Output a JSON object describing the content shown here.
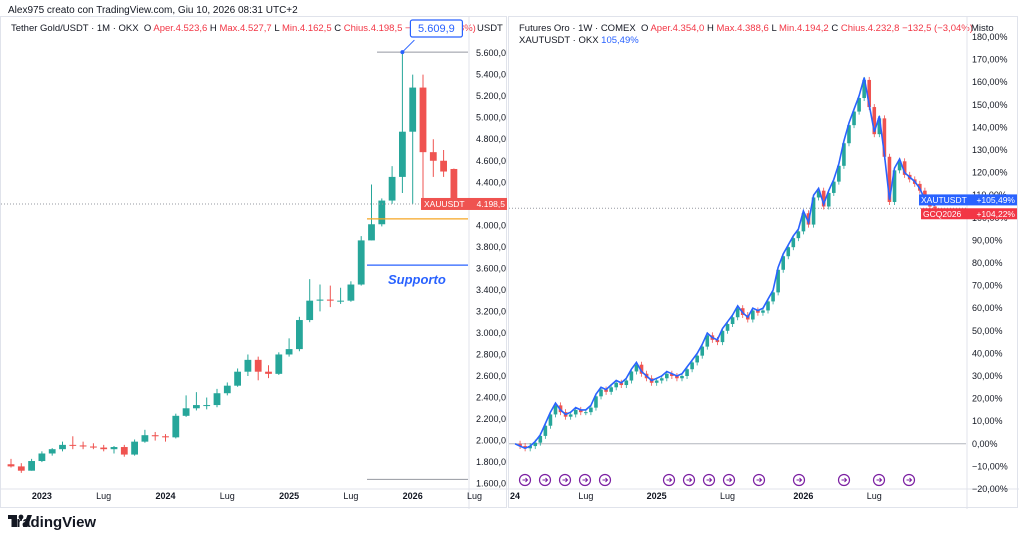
{
  "header": {
    "note": "Alex975 creato con TradingView.com, Giu 10, 2026 08:31 UTC+2"
  },
  "left": {
    "symbol": "Tether Gold/USDT · 1M · OKX",
    "open_label": "O",
    "open": "Aper.4.523,6",
    "high_label": "H",
    "high": "Max.4.527,7",
    "low_label": "L",
    "low": "Min.4.162,5",
    "close_label": "C",
    "close": "Chius.4.198,5",
    "change": "−325,1 (−7,18%)",
    "axis_title": "USDT",
    "price_tag_label": "XAUUSDT",
    "price_tag_value": "4.198,5",
    "peak_callout": "5.609,9",
    "support_label": "Supporto",
    "colors": {
      "up": "#26a69a",
      "down": "#ef5350",
      "support": "#2962ff",
      "level_orange": "#f5a623"
    }
  },
  "right": {
    "symbol": "Futures Oro · 1W · COMEX",
    "open_label": "O",
    "open": "Aper.4.354,0",
    "high_label": "H",
    "high": "Max.4.388,6",
    "low_label": "L",
    "low": "Min.4.194,2",
    "close_label": "C",
    "close": "Chius.4.232,8",
    "change": "−132,5 (−3,04%)",
    "compare_symbol": "XAUTUSDT · OKX",
    "compare_value": "105,49%",
    "axis_title": "Misto",
    "tag1_label": "XAUTUSDT",
    "tag1_value": "+105,49%",
    "tag2_label": "GCQ2026",
    "tag2_value": "+104,22%",
    "colors": {
      "line": "#2962ff",
      "up": "#26a69a",
      "down": "#ef5350",
      "event_icon": "#7b1fa2"
    }
  },
  "logo": "TradingView",
  "chart_data": [
    {
      "type": "candlestick",
      "title": "Tether Gold/USDT · 1M · OKX",
      "ylabel": "USDT",
      "ylim": [
        1550,
        5750
      ],
      "y_ticks": [
        "1.600,0",
        "1.800,0",
        "2.000,0",
        "2.200,0",
        "2.400,0",
        "2.600,0",
        "2.800,0",
        "3.000,0",
        "3.200,0",
        "3.400,0",
        "3.600,0",
        "3.800,0",
        "4.000,0",
        "4.200,0",
        "4.400,0",
        "4.600,0",
        "4.800,0",
        "5.000,0",
        "5.200,0",
        "5.400,0",
        "5.600,0"
      ],
      "x_tick_labels": [
        "2023",
        "Lug",
        "2024",
        "Lug",
        "2025",
        "Lug",
        "2026",
        "Lug"
      ],
      "candles": [
        {
          "o": 1780,
          "h": 1830,
          "l": 1750,
          "c": 1760
        },
        {
          "o": 1760,
          "h": 1790,
          "l": 1700,
          "c": 1720
        },
        {
          "o": 1720,
          "h": 1830,
          "l": 1720,
          "c": 1810
        },
        {
          "o": 1810,
          "h": 1900,
          "l": 1800,
          "c": 1880
        },
        {
          "o": 1880,
          "h": 1930,
          "l": 1860,
          "c": 1920
        },
        {
          "o": 1920,
          "h": 1990,
          "l": 1900,
          "c": 1960
        },
        {
          "o": 1960,
          "h": 2040,
          "l": 1920,
          "c": 1955
        },
        {
          "o": 1955,
          "h": 1990,
          "l": 1920,
          "c": 1945
        },
        {
          "o": 1945,
          "h": 1975,
          "l": 1920,
          "c": 1935
        },
        {
          "o": 1935,
          "h": 1960,
          "l": 1900,
          "c": 1920
        },
        {
          "o": 1920,
          "h": 1950,
          "l": 1880,
          "c": 1940
        },
        {
          "o": 1940,
          "h": 1960,
          "l": 1850,
          "c": 1870
        },
        {
          "o": 1870,
          "h": 2010,
          "l": 1860,
          "c": 1990
        },
        {
          "o": 1990,
          "h": 2100,
          "l": 1980,
          "c": 2050
        },
        {
          "o": 2050,
          "h": 2080,
          "l": 2000,
          "c": 2040
        },
        {
          "o": 2040,
          "h": 2060,
          "l": 1990,
          "c": 2030
        },
        {
          "o": 2030,
          "h": 2250,
          "l": 2020,
          "c": 2230
        },
        {
          "o": 2230,
          "h": 2420,
          "l": 2220,
          "c": 2300
        },
        {
          "o": 2300,
          "h": 2450,
          "l": 2280,
          "c": 2330
        },
        {
          "o": 2330,
          "h": 2400,
          "l": 2290,
          "c": 2330
        },
        {
          "o": 2330,
          "h": 2480,
          "l": 2310,
          "c": 2440
        },
        {
          "o": 2440,
          "h": 2540,
          "l": 2420,
          "c": 2510
        },
        {
          "o": 2510,
          "h": 2670,
          "l": 2500,
          "c": 2640
        },
        {
          "o": 2640,
          "h": 2800,
          "l": 2600,
          "c": 2750
        },
        {
          "o": 2750,
          "h": 2780,
          "l": 2560,
          "c": 2640
        },
        {
          "o": 2640,
          "h": 2700,
          "l": 2580,
          "c": 2620
        },
        {
          "o": 2620,
          "h": 2820,
          "l": 2610,
          "c": 2800
        },
        {
          "o": 2800,
          "h": 2950,
          "l": 2780,
          "c": 2850
        },
        {
          "o": 2850,
          "h": 3150,
          "l": 2830,
          "c": 3120
        },
        {
          "o": 3120,
          "h": 3500,
          "l": 3100,
          "c": 3300
        },
        {
          "o": 3300,
          "h": 3450,
          "l": 3200,
          "c": 3310
        },
        {
          "o": 3310,
          "h": 3440,
          "l": 3240,
          "c": 3300
        },
        {
          "o": 3300,
          "h": 3420,
          "l": 3270,
          "c": 3300
        },
        {
          "o": 3300,
          "h": 3480,
          "l": 3290,
          "c": 3450
        },
        {
          "o": 3450,
          "h": 3900,
          "l": 3440,
          "c": 3860
        },
        {
          "o": 3860,
          "h": 4380,
          "l": 3860,
          "c": 4010
        },
        {
          "o": 4010,
          "h": 4250,
          "l": 3990,
          "c": 4230
        },
        {
          "o": 4230,
          "h": 4550,
          "l": 4200,
          "c": 4450
        },
        {
          "o": 4450,
          "h": 5620,
          "l": 4300,
          "c": 4870
        },
        {
          "o": 4870,
          "h": 5400,
          "l": 4200,
          "c": 5280
        },
        {
          "o": 5280,
          "h": 5400,
          "l": 4150,
          "c": 4680
        },
        {
          "o": 4680,
          "h": 4800,
          "l": 4450,
          "c": 4600
        },
        {
          "o": 4600,
          "h": 4700,
          "l": 4450,
          "c": 4500
        },
        {
          "o": 4523.6,
          "h": 4527.7,
          "l": 4162.5,
          "c": 4198.5
        }
      ],
      "levels": [
        {
          "label": "Supporto",
          "value": 3630
        },
        {
          "value": 4060
        },
        {
          "value": 1640
        },
        {
          "value": 5609.9
        }
      ],
      "last_price": 4198.5
    },
    {
      "type": "line",
      "title": "Futures Oro · 1W · COMEX",
      "ylabel": "Misto",
      "ylim": [
        -20,
        180
      ],
      "y_ticks": [
        "−20,00%",
        "−10,00%",
        "0,00%",
        "10,00%",
        "20,00%",
        "30,00%",
        "40,00%",
        "50,00%",
        "60,00%",
        "70,00%",
        "80,00%",
        "90,00%",
        "100,00%",
        "110,00%",
        "120,00%",
        "130,00%",
        "140,00%",
        "150,00%",
        "160,00%",
        "170,00%",
        "180,00%"
      ],
      "x_tick_labels": [
        "24",
        "Lug",
        "2025",
        "Lug",
        "2026",
        "Lug"
      ],
      "series": [
        {
          "name": "XAUTUSDT · OKX",
          "values": [
            0,
            -1,
            -2,
            -1,
            1,
            4,
            9,
            14,
            18,
            15,
            13,
            14,
            16,
            15,
            15,
            17,
            22,
            25,
            24,
            26,
            28,
            27,
            29,
            33,
            36,
            32,
            30,
            28,
            29,
            30,
            32,
            31,
            30,
            31,
            34,
            37,
            40,
            44,
            49,
            47,
            46,
            51,
            54,
            57,
            61,
            58,
            56,
            60,
            59,
            60,
            64,
            68,
            78,
            84,
            88,
            92,
            95,
            103,
            98,
            110,
            113,
            106,
            112,
            117,
            124,
            134,
            142,
            148,
            154,
            162,
            150,
            138,
            145,
            128,
            108,
            122,
            126,
            120,
            118,
            116,
            113,
            108,
            106,
            105.49
          ]
        },
        {
          "name": "GCQ2026",
          "values": [
            0,
            -1,
            -2,
            -1,
            0.5,
            3.5,
            8,
            13,
            17,
            14,
            12,
            13,
            15,
            14,
            14,
            16,
            21,
            24,
            23,
            25,
            27,
            26,
            28,
            32,
            35,
            31,
            29,
            27,
            28,
            29,
            31,
            30,
            29,
            30,
            33,
            36,
            39,
            43,
            48,
            46,
            45,
            50,
            53,
            56,
            60,
            57,
            55,
            59,
            58,
            59,
            63,
            67,
            77,
            83,
            87,
            91,
            94,
            102,
            97,
            109,
            112,
            105,
            111,
            116,
            123,
            133,
            141,
            147,
            153,
            161,
            149,
            137,
            144,
            127,
            107,
            121,
            125,
            119,
            117,
            115,
            112,
            107,
            105,
            104.22
          ]
        }
      ],
      "event_markers": 14
    }
  ]
}
